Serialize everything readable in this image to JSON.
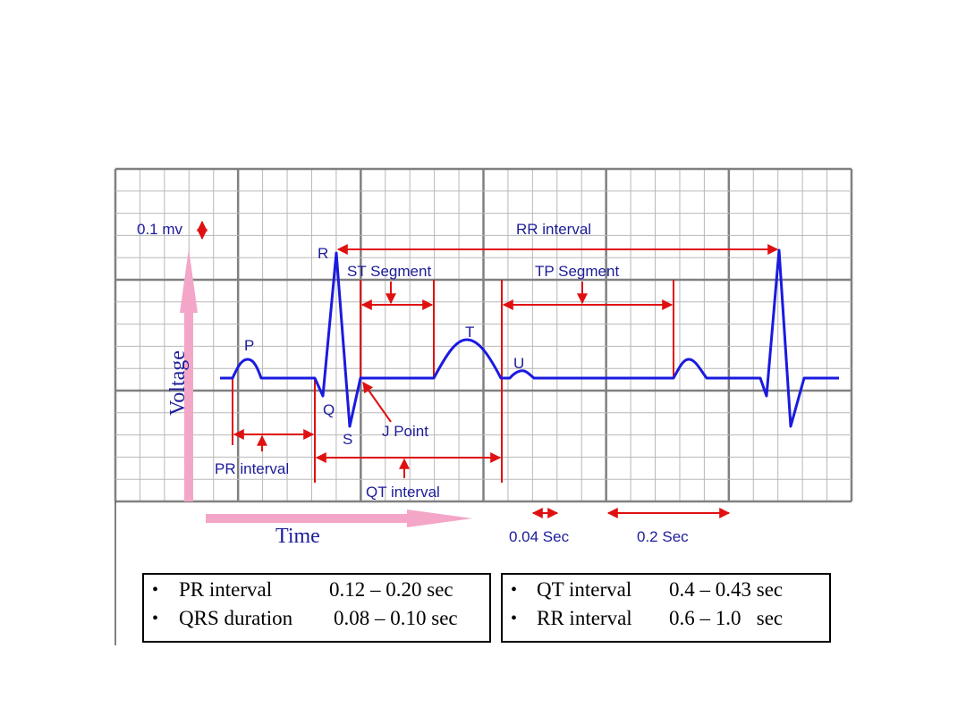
{
  "ecg": {
    "scale_label": "0.1 mv",
    "axis_y": "Voltage",
    "axis_x": "Time",
    "waves": {
      "P": "P",
      "Q": "Q",
      "R": "R",
      "S": "S",
      "T": "T",
      "U": "U"
    },
    "intervals": {
      "rr": "RR interval",
      "st": "ST Segment",
      "tp": "TP Segment",
      "pr": "PR interval",
      "qt": "QT interval",
      "j": "J Point"
    },
    "time_scale": {
      "small": "0.04 Sec",
      "large": "0.2 Sec"
    }
  },
  "boxes": [
    {
      "rows": [
        {
          "name": "PR interval",
          "value": "0.12 – 0.20 sec"
        },
        {
          "name": "QRS duration",
          "value": "0.08 – 0.10 sec"
        }
      ]
    },
    {
      "rows": [
        {
          "name": "QT interval",
          "value": "0.4 – 0.43 sec"
        },
        {
          "name": "RR interval",
          "value": "0.6 – 1.0   sec"
        }
      ]
    }
  ]
}
